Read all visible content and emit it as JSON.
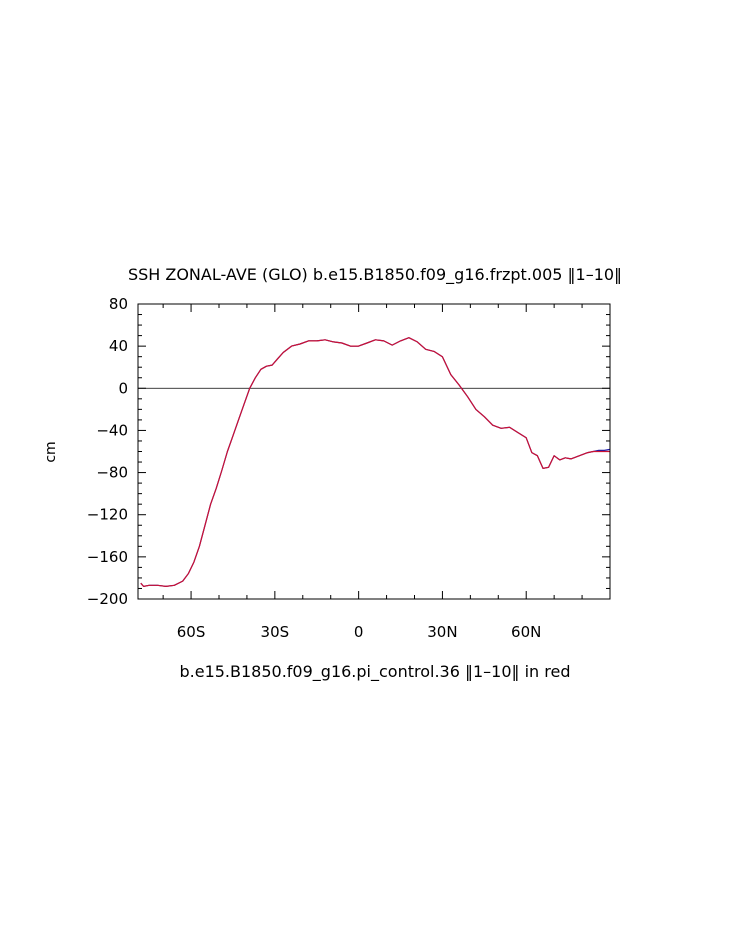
{
  "chart_data": {
    "type": "line",
    "title": "SSH ZONAL-AVE (GLO) b.e15.B1850.f09_g16.frzpt.005 ‖1–10‖",
    "subtitle": "b.e15.B1850.f09_g16.pi_control.36 ‖1–10‖ in red",
    "ylabel": "cm",
    "xlabel": "",
    "xlim": [
      -79,
      90
    ],
    "ylim": [
      -200,
      80
    ],
    "x_ticks": [
      {
        "value": -60,
        "label": "60S"
      },
      {
        "value": -30,
        "label": "30S"
      },
      {
        "value": 0,
        "label": "0"
      },
      {
        "value": 30,
        "label": "30N"
      },
      {
        "value": 60,
        "label": "60N"
      }
    ],
    "y_ticks": [
      {
        "value": 80,
        "label": "80"
      },
      {
        "value": 40,
        "label": "40"
      },
      {
        "value": 0,
        "label": "0"
      },
      {
        "value": -40,
        "label": "−40"
      },
      {
        "value": -80,
        "label": "−80"
      },
      {
        "value": -120,
        "label": "−120"
      },
      {
        "value": -160,
        "label": "−160"
      },
      {
        "value": -200,
        "label": "−200"
      }
    ],
    "reference_line_y": 0,
    "grid": false,
    "series": [
      {
        "color": "#1a1aa8",
        "x": [
          -78,
          -77,
          -75,
          -72,
          -69,
          -66,
          -63,
          -61,
          -59,
          -57,
          -55,
          -53,
          -51,
          -49,
          -47,
          -45,
          -43,
          -41,
          -39,
          -37,
          -35,
          -33,
          -31,
          -29,
          -27,
          -24,
          -21,
          -18,
          -15,
          -12,
          -9,
          -6,
          -3,
          0,
          3,
          6,
          9,
          12,
          15,
          18,
          21,
          24,
          27,
          30,
          33,
          36,
          39,
          42,
          45,
          48,
          51,
          54,
          57,
          60,
          62,
          64,
          66,
          68,
          70,
          72,
          74,
          76,
          78,
          80,
          82,
          84,
          86,
          88,
          90
        ],
        "y": [
          -185,
          -188,
          -187,
          -187,
          -188,
          -187,
          -183,
          -176,
          -165,
          -150,
          -130,
          -110,
          -95,
          -78,
          -60,
          -45,
          -30,
          -15,
          0,
          10,
          18,
          21,
          22,
          28,
          34,
          40,
          42,
          45,
          45,
          46,
          44,
          43,
          40,
          40,
          43,
          46,
          45,
          41,
          45,
          48,
          44,
          37,
          35,
          30,
          13,
          3,
          -8,
          -20,
          -27,
          -35,
          -38,
          -37,
          -42,
          -47,
          -61,
          -64,
          -76,
          -75,
          -64,
          -68,
          -66,
          -67,
          -65,
          -63,
          -61,
          -60,
          -59,
          -59,
          -58
        ]
      },
      {
        "color": "#cc1133",
        "x": [
          -78,
          -77,
          -75,
          -72,
          -69,
          -66,
          -63,
          -61,
          -59,
          -57,
          -55,
          -53,
          -51,
          -49,
          -47,
          -45,
          -43,
          -41,
          -39,
          -37,
          -35,
          -33,
          -31,
          -29,
          -27,
          -24,
          -21,
          -18,
          -15,
          -12,
          -9,
          -6,
          -3,
          0,
          3,
          6,
          9,
          12,
          15,
          18,
          21,
          24,
          27,
          30,
          33,
          36,
          39,
          42,
          45,
          48,
          51,
          54,
          57,
          60,
          62,
          64,
          66,
          68,
          70,
          72,
          74,
          76,
          78,
          80,
          82,
          84,
          86,
          88,
          90
        ],
        "y": [
          -185,
          -188,
          -187,
          -187,
          -188,
          -187,
          -183,
          -176,
          -165,
          -150,
          -130,
          -110,
          -95,
          -78,
          -60,
          -45,
          -30,
          -15,
          0,
          10,
          18,
          21,
          22,
          28,
          34,
          40,
          42,
          45,
          45,
          46,
          44,
          43,
          40,
          40,
          43,
          46,
          45,
          41,
          45,
          48,
          44,
          37,
          35,
          30,
          13,
          3,
          -8,
          -20,
          -27,
          -35,
          -38,
          -37,
          -42,
          -47,
          -61,
          -64,
          -76,
          -75,
          -64,
          -68,
          -66,
          -67,
          -65,
          -63,
          -61,
          -60,
          -60,
          -60,
          -60
        ]
      }
    ]
  }
}
